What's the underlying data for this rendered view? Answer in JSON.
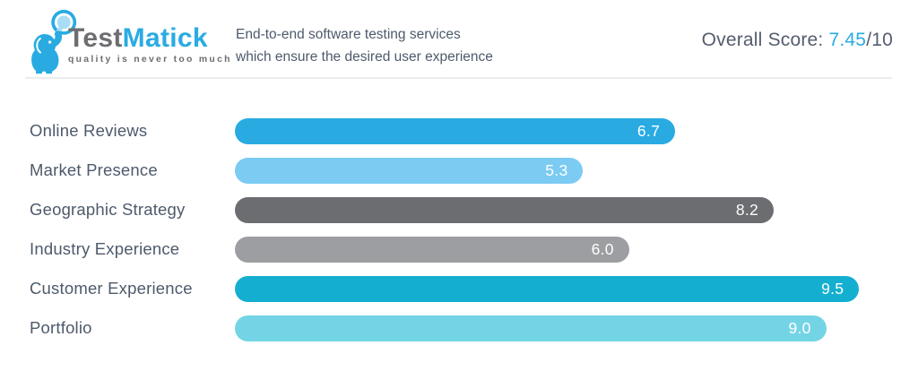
{
  "header": {
    "logo": {
      "icon": "elephant-with-magnifying-glass",
      "brand_primary": "Test",
      "brand_secondary": "Matick",
      "tagline": "quality is never too much"
    },
    "subtitle_line1": "End-to-end software testing services",
    "subtitle_line2": "which ensure the desired user experience",
    "score": {
      "label": "Overall Score: ",
      "value": "7.45",
      "suffix": "/10"
    }
  },
  "colors": {
    "accent_blue": "#29abe2",
    "brand_gray": "#6d6e71",
    "text_slate": "#4d5a6b",
    "divider": "#ececec",
    "value_label": "#ffffff"
  },
  "chart_data": {
    "type": "bar",
    "orientation": "horizontal",
    "title": "",
    "xlabel": "",
    "ylabel": "",
    "categories": [
      "Online Reviews",
      "Market Presence",
      "Geographic Strategy",
      "Industry Experience",
      "Customer Experience",
      "Portfolio"
    ],
    "values": [
      6.7,
      5.3,
      8.2,
      6.0,
      9.5,
      9.0
    ],
    "bar_colors": [
      "#29abe2",
      "#7bcbf2",
      "#6c6d70",
      "#9c9ea1",
      "#14afd0",
      "#73d4e5"
    ],
    "xlim": [
      0,
      10
    ],
    "grid": false,
    "legend": false,
    "value_labels": "inside-end"
  }
}
